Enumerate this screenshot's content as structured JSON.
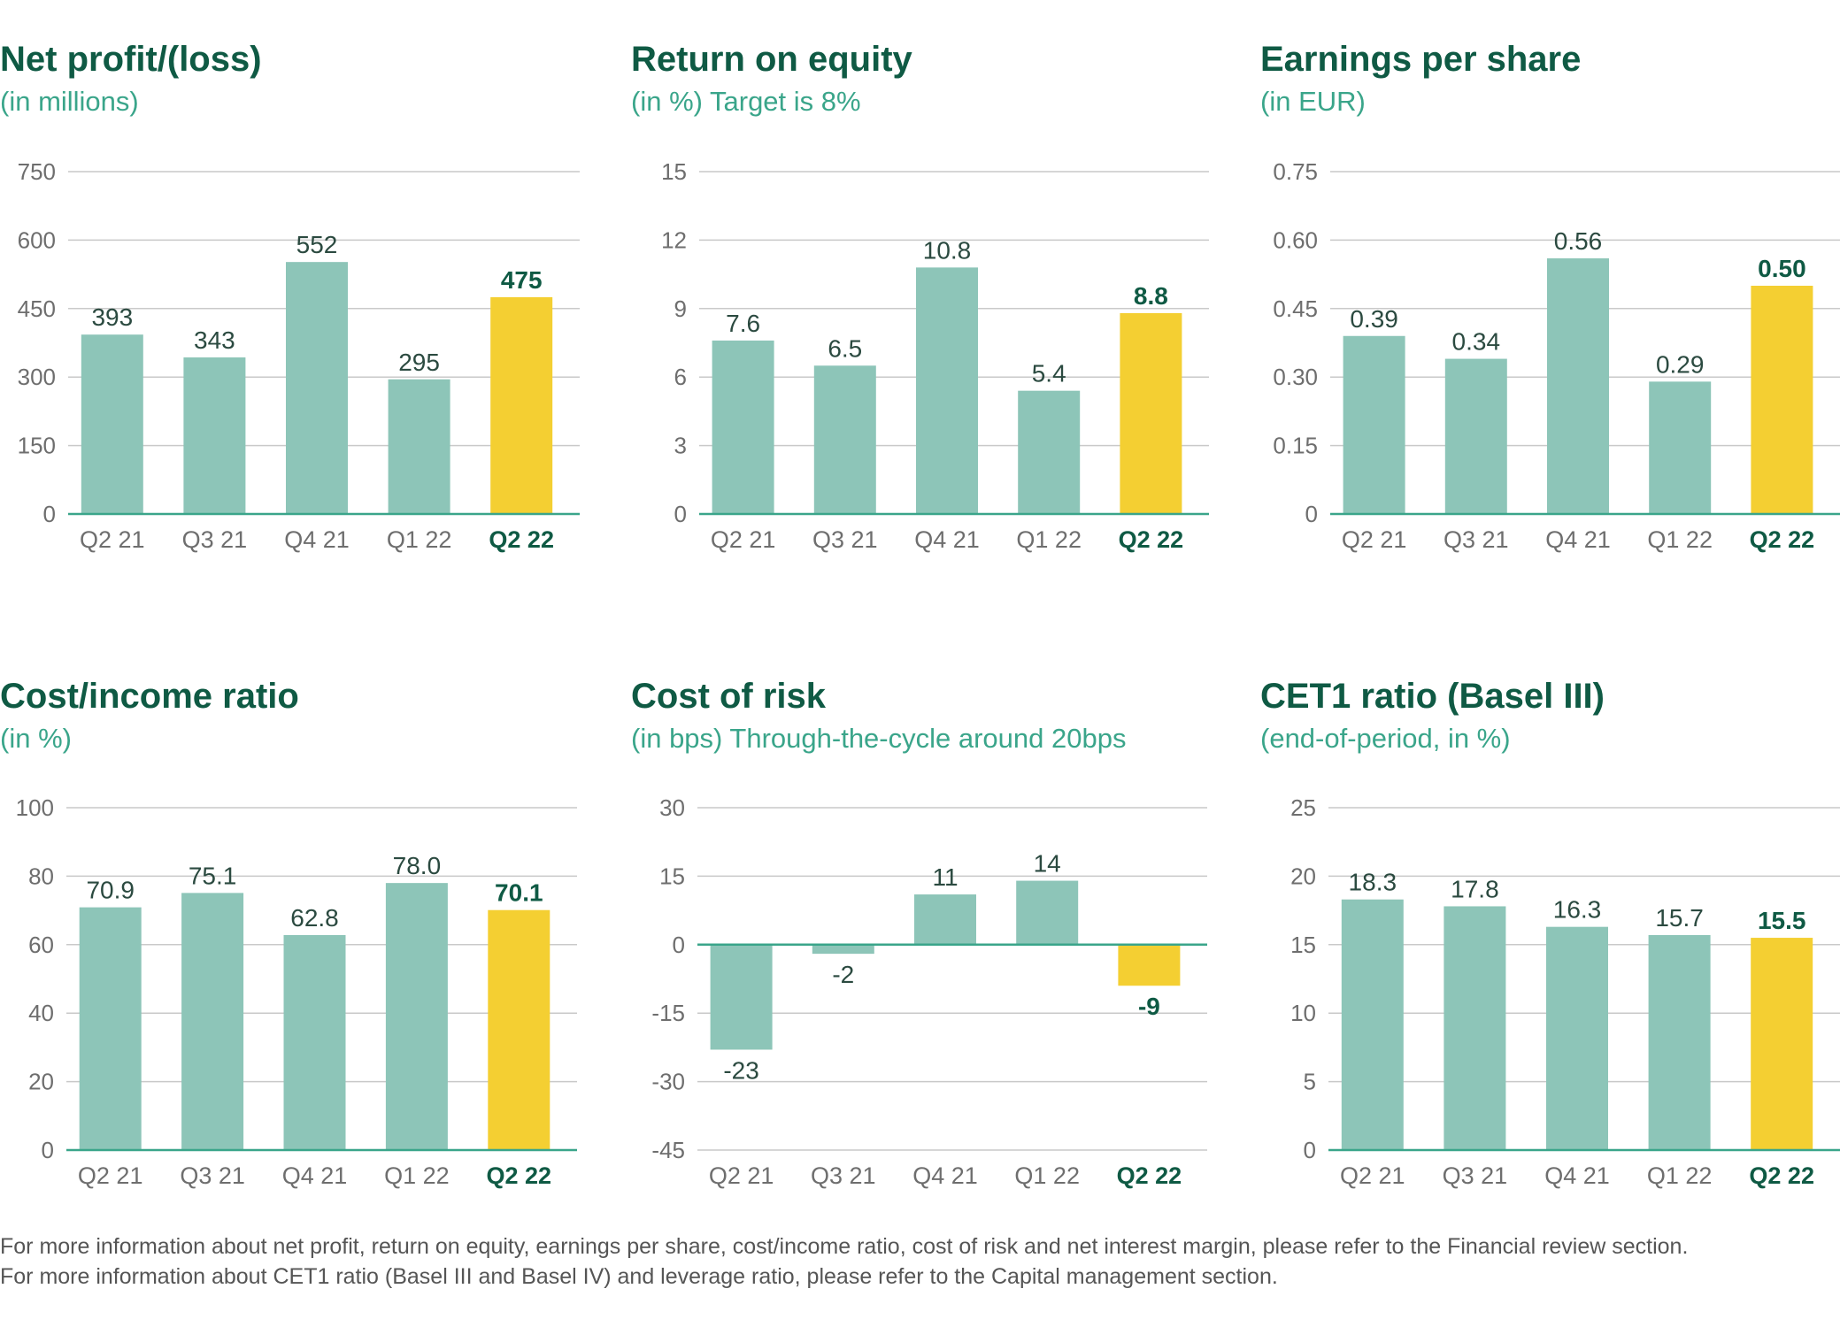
{
  "colors": {
    "bar": "#8dc5b8",
    "highlight": "#f4cf32",
    "title": "#0f5a44",
    "subtitle": "#3aa58a"
  },
  "chart_data": [
    {
      "type": "bar",
      "title": "Net profit/(loss)",
      "subtitle": "(in millions)",
      "categories": [
        "Q2 21",
        "Q3 21",
        "Q4 21",
        "Q1 22",
        "Q2 22"
      ],
      "values": [
        393,
        343,
        552,
        295,
        475
      ],
      "value_labels": [
        "393",
        "343",
        "552",
        "295",
        "475"
      ],
      "highlight_index": 4,
      "yticks": [
        0,
        150,
        300,
        450,
        600,
        750
      ],
      "ytick_labels": [
        "0",
        "150",
        "300",
        "450",
        "600",
        "750"
      ],
      "ylim": [
        0,
        750
      ]
    },
    {
      "type": "bar",
      "title": "Return on equity",
      "subtitle": "(in %) Target is 8%",
      "categories": [
        "Q2 21",
        "Q3 21",
        "Q4 21",
        "Q1 22",
        "Q2 22"
      ],
      "values": [
        7.6,
        6.5,
        10.8,
        5.4,
        8.8
      ],
      "value_labels": [
        "7.6",
        "6.5",
        "10.8",
        "5.4",
        "8.8"
      ],
      "highlight_index": 4,
      "yticks": [
        0,
        3,
        6,
        9,
        12,
        15
      ],
      "ytick_labels": [
        "0",
        "3",
        "6",
        "9",
        "12",
        "15"
      ],
      "ylim": [
        0,
        15
      ]
    },
    {
      "type": "bar",
      "title": "Earnings per share",
      "subtitle": "(in EUR)",
      "categories": [
        "Q2 21",
        "Q3 21",
        "Q4 21",
        "Q1 22",
        "Q2 22"
      ],
      "values": [
        0.39,
        0.34,
        0.56,
        0.29,
        0.5
      ],
      "value_labels": [
        "0.39",
        "0.34",
        "0.56",
        "0.29",
        "0.50"
      ],
      "highlight_index": 4,
      "yticks": [
        0,
        0.15,
        0.3,
        0.45,
        0.6,
        0.75
      ],
      "ytick_labels": [
        "0",
        "0.15",
        "0.30",
        "0.45",
        "0.60",
        "0.75"
      ],
      "ylim": [
        0,
        0.75
      ]
    },
    {
      "type": "bar",
      "title": "Cost/income ratio",
      "subtitle": "(in %)",
      "categories": [
        "Q2 21",
        "Q3 21",
        "Q4 21",
        "Q1 22",
        "Q2 22"
      ],
      "values": [
        70.9,
        75.1,
        62.8,
        78.0,
        70.1
      ],
      "value_labels": [
        "70.9",
        "75.1",
        "62.8",
        "78.0",
        "70.1"
      ],
      "highlight_index": 4,
      "yticks": [
        0,
        20,
        40,
        60,
        80,
        100
      ],
      "ytick_labels": [
        "0",
        "20",
        "40",
        "60",
        "80",
        "100"
      ],
      "ylim": [
        0,
        100
      ]
    },
    {
      "type": "bar",
      "title": "Cost of risk",
      "subtitle": "(in bps) Through-the-cycle around 20bps",
      "categories": [
        "Q2 21",
        "Q3 21",
        "Q4 21",
        "Q1 22",
        "Q2 22"
      ],
      "values": [
        -23,
        -2,
        11,
        14,
        -9
      ],
      "value_labels": [
        "-23",
        "-2",
        "11",
        "14",
        "-9"
      ],
      "highlight_index": 4,
      "yticks": [
        -45,
        -30,
        -15,
        0,
        15,
        30
      ],
      "ytick_labels": [
        "-45",
        "-30",
        "-15",
        "0",
        "15",
        "30"
      ],
      "ylim": [
        -45,
        30
      ]
    },
    {
      "type": "bar",
      "title": "CET1 ratio (Basel III)",
      "subtitle": "(end-of-period, in %)",
      "categories": [
        "Q2 21",
        "Q3 21",
        "Q4 21",
        "Q1 22",
        "Q2 22"
      ],
      "values": [
        18.3,
        17.8,
        16.3,
        15.7,
        15.5
      ],
      "value_labels": [
        "18.3",
        "17.8",
        "16.3",
        "15.7",
        "15.5"
      ],
      "highlight_index": 4,
      "yticks": [
        0,
        5,
        10,
        15,
        20,
        25
      ],
      "ytick_labels": [
        "0",
        "5",
        "10",
        "15",
        "20",
        "25"
      ],
      "ylim": [
        0,
        25
      ]
    }
  ],
  "footnotes": [
    "For more information about net profit, return on equity, earnings per share, cost/income ratio, cost of risk and net interest margin, please refer to the Financial review section.",
    "For more information about CET1 ratio (Basel III and Basel IV) and leverage ratio, please refer to the Capital management section."
  ]
}
